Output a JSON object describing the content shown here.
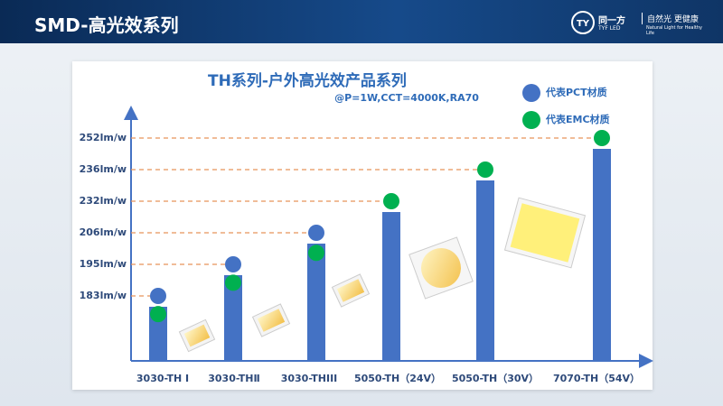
{
  "header": {
    "title": "SMD-高光效系列",
    "logo": "TYF LED",
    "brand": "同一方",
    "slogan": "自然光 更健康",
    "slogan_en": "Natural Light for Healthy Life"
  },
  "chart_data": {
    "type": "bar",
    "title": "TH系列-户外高光效产品系列",
    "subtitle": "@P=1W,CCT=4000K,RA70",
    "categories": [
      "3030-TH Ⅰ",
      "3030-THⅡ",
      "3030-THIII",
      "5050-TH（24V）",
      "5050-TH（30V）",
      "7070-TH（54V）"
    ],
    "series": [
      {
        "name": "代表PCT材质",
        "color": "#4472c4",
        "values": [
          183,
          195,
          206,
          null,
          null,
          null
        ]
      },
      {
        "name": "代表EMC材质",
        "color": "#00b050",
        "values": [
          176,
          188,
          199,
          232,
          236,
          252
        ]
      }
    ],
    "bar_color": "#4472c4",
    "ylim": [
      158,
      265
    ],
    "yticks": [
      {
        "value": 183,
        "label": "183lm/w"
      },
      {
        "value": 195,
        "label": "195lm/w"
      },
      {
        "value": 206,
        "label": "206lm/w"
      },
      {
        "value": 232,
        "label": "232lm/w"
      },
      {
        "value": 236,
        "label": "236lm/w"
      },
      {
        "value": 252,
        "label": "252lm/w"
      }
    ],
    "grid": true
  }
}
